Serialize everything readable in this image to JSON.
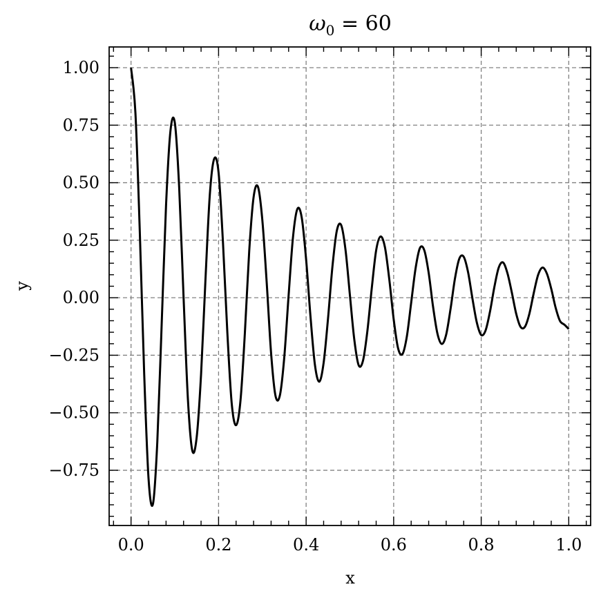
{
  "chart_data": {
    "type": "line",
    "title": "ω",
    "title_subscript": "0",
    "title_suffix": " = 60",
    "xlabel": "x",
    "ylabel": "y",
    "xlim": [
      -0.05,
      1.05
    ],
    "ylim": [
      -0.99,
      1.09
    ],
    "grid": true,
    "x_ticks": [
      0.0,
      0.2,
      0.4,
      0.6,
      0.8,
      1.0
    ],
    "x_tick_labels": [
      "0.0",
      "0.2",
      "0.4",
      "0.6",
      "0.8",
      "1.0"
    ],
    "y_ticks": [
      -0.75,
      -0.5,
      -0.25,
      0.0,
      0.25,
      0.5,
      0.75,
      1.0
    ],
    "y_tick_labels": [
      "−0.75",
      "−0.50",
      "−0.25",
      "0.00",
      "0.25",
      "0.50",
      "0.75",
      "1.00"
    ],
    "line_color": "#000000",
    "grid_color": "#808080",
    "series": [
      {
        "x": [
          0.0,
          0.01,
          0.02,
          0.03,
          0.04,
          0.05,
          0.06,
          0.07,
          0.08,
          0.09,
          0.1,
          0.11,
          0.12,
          0.13,
          0.14,
          0.15,
          0.16,
          0.17,
          0.18,
          0.19,
          0.2,
          0.21,
          0.22,
          0.23,
          0.24,
          0.25,
          0.26,
          0.27,
          0.28,
          0.29,
          0.3,
          0.31,
          0.32,
          0.33,
          0.34,
          0.35,
          0.36,
          0.37,
          0.38,
          0.39,
          0.4,
          0.41,
          0.42,
          0.43,
          0.44,
          0.45,
          0.46,
          0.47,
          0.48,
          0.49,
          0.5,
          0.51,
          0.52,
          0.53,
          0.54,
          0.55,
          0.56,
          0.57,
          0.58,
          0.59,
          0.6,
          0.61,
          0.62,
          0.63,
          0.64,
          0.65,
          0.66,
          0.67,
          0.68,
          0.69,
          0.7,
          0.71,
          0.72,
          0.73,
          0.74,
          0.75,
          0.76,
          0.77,
          0.78,
          0.79,
          0.8,
          0.81,
          0.82,
          0.83,
          0.84,
          0.85,
          0.86,
          0.87,
          0.88,
          0.89,
          0.9,
          0.91,
          0.92,
          0.93,
          0.94,
          0.95,
          0.96,
          0.97,
          0.98,
          0.99,
          1.0
        ],
        "y": [
          1.0,
          0.804,
          0.289,
          -0.327,
          -0.786,
          -0.897,
          -0.628,
          -0.115,
          0.402,
          0.724,
          0.761,
          0.479,
          0.003,
          -0.443,
          -0.665,
          -0.606,
          -0.333,
          0.077,
          0.448,
          0.604,
          0.544,
          0.241,
          -0.15,
          -0.459,
          -0.554,
          -0.448,
          -0.156,
          0.203,
          0.437,
          0.482,
          0.337,
          0.064,
          -0.242,
          -0.426,
          -0.425,
          -0.261,
          0.01,
          0.263,
          0.386,
          0.348,
          0.166,
          -0.082,
          -0.29,
          -0.365,
          -0.283,
          -0.091,
          0.133,
          0.29,
          0.316,
          0.208,
          0.012,
          -0.181,
          -0.293,
          -0.273,
          -0.144,
          0.042,
          0.206,
          0.266,
          0.22,
          0.08,
          -0.093,
          -0.219,
          -0.245,
          -0.17,
          -0.022,
          0.127,
          0.216,
          0.206,
          0.108,
          -0.039,
          -0.156,
          -0.201,
          -0.16,
          -0.048,
          0.083,
          0.17,
          0.178,
          0.111,
          -0.004,
          -0.108,
          -0.162,
          -0.142,
          -0.061,
          0.046,
          0.131,
          0.153,
          0.106,
          0.022,
          -0.07,
          -0.127,
          -0.126,
          -0.07,
          0.02,
          0.099,
          0.131,
          0.105,
          0.039,
          -0.043,
          -0.101,
          -0.117,
          -0.136
        ]
      }
    ]
  }
}
